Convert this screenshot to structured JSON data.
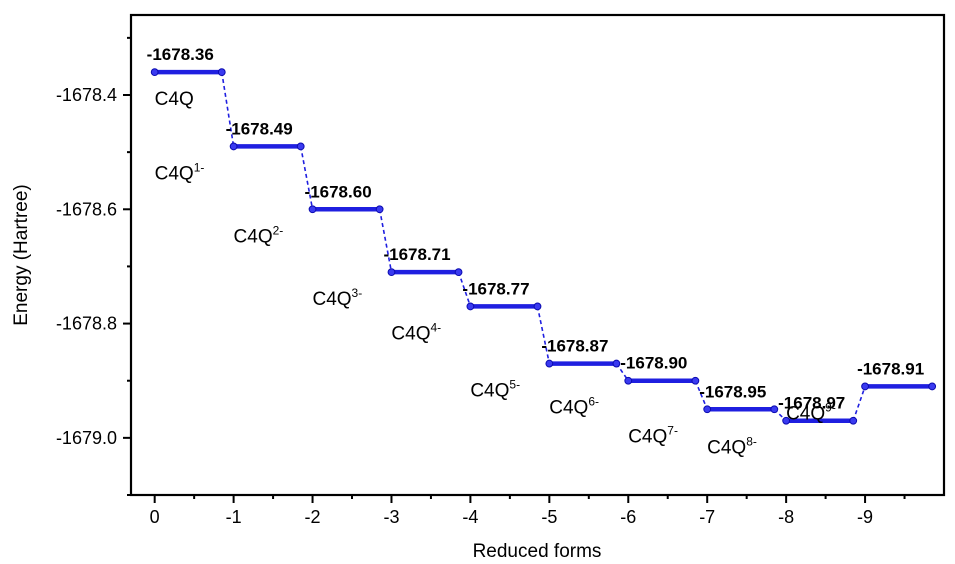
{
  "chart_data": {
    "type": "line",
    "subtype": "energy-level-diagram",
    "xlabel": "Reduced forms",
    "ylabel": "Energy (Hartree)",
    "xlim": [
      -0.3,
      10.0
    ],
    "ylim": [
      -1679.1,
      -1678.26
    ],
    "x_ticks": [
      0,
      1,
      2,
      3,
      4,
      5,
      6,
      7,
      8,
      9
    ],
    "x_tick_labels": [
      "0",
      "-1",
      "-2",
      "-3",
      "-4",
      "-5",
      "-6",
      "-7",
      "-8",
      "-9"
    ],
    "y_ticks": [
      -1678.4,
      -1678.6,
      -1678.8,
      -1679.0
    ],
    "y_tick_labels": [
      "-1678.4",
      "-1678.6",
      "-1678.8",
      "-1679.0"
    ],
    "grid": false,
    "color": "#1f1fe0",
    "levels": [
      {
        "state": "C4Q",
        "charge": "",
        "x_start": 0,
        "x_end": 0.85,
        "energy": -1678.36,
        "label": "-1678.36"
      },
      {
        "state": "C4Q",
        "charge": "1-",
        "x_start": 1,
        "x_end": 1.85,
        "energy": -1678.49,
        "label": "-1678.49"
      },
      {
        "state": "C4Q",
        "charge": "2-",
        "x_start": 2,
        "x_end": 2.85,
        "energy": -1678.6,
        "label": "-1678.60"
      },
      {
        "state": "C4Q",
        "charge": "3-",
        "x_start": 3,
        "x_end": 3.85,
        "energy": -1678.71,
        "label": "-1678.71"
      },
      {
        "state": "C4Q",
        "charge": "4-",
        "x_start": 4,
        "x_end": 4.85,
        "energy": -1678.77,
        "label": "-1678.77"
      },
      {
        "state": "C4Q",
        "charge": "5-",
        "x_start": 5,
        "x_end": 5.85,
        "energy": -1678.87,
        "label": "-1678.87"
      },
      {
        "state": "C4Q",
        "charge": "6-",
        "x_start": 6,
        "x_end": 6.85,
        "energy": -1678.9,
        "label": "-1678.90"
      },
      {
        "state": "C4Q",
        "charge": "7-",
        "x_start": 7,
        "x_end": 7.85,
        "energy": -1678.95,
        "label": "-1678.95"
      },
      {
        "state": "C4Q",
        "charge": "8-",
        "x_start": 8,
        "x_end": 8.85,
        "energy": -1678.97,
        "label": "-1678.97"
      },
      {
        "state": "C4Q",
        "charge": "9-",
        "x_start": 9,
        "x_end": 9.85,
        "energy": -1678.91,
        "label": "-1678.91"
      }
    ]
  }
}
